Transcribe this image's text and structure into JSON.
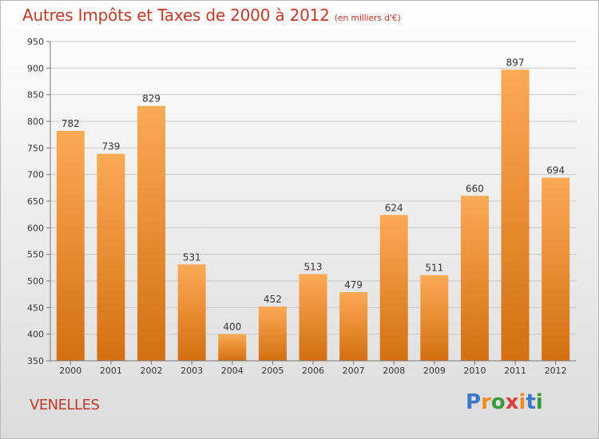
{
  "chart_data": {
    "type": "bar",
    "title": "Autres Impôts et Taxes de 2000 à 2012",
    "subtitle": "(en milliers d'€)",
    "categories": [
      "2000",
      "2001",
      "2002",
      "2003",
      "2004",
      "2005",
      "2006",
      "2007",
      "2008",
      "2009",
      "2010",
      "2011",
      "2012"
    ],
    "values": [
      782,
      739,
      829,
      531,
      400,
      452,
      513,
      479,
      624,
      511,
      660,
      897,
      694
    ],
    "ylim": [
      350,
      950
    ],
    "yticks": [
      350,
      400,
      450,
      500,
      550,
      600,
      650,
      700,
      750,
      800,
      850,
      900,
      950
    ],
    "ytick_labels": [
      "350",
      "400",
      "450",
      "500",
      "550",
      "600",
      "650",
      "700",
      "750",
      "800",
      "850",
      "900",
      "950"
    ],
    "grid": true,
    "bar_color_top": "#fbaa55",
    "bar_color_bottom": "#d46f12",
    "title_color": "#c03a2b"
  },
  "commune": "VENELLES",
  "brand": {
    "letters": [
      "P",
      "r",
      "o",
      "x",
      "i",
      "t",
      "i"
    ],
    "colors": [
      "#3a78c9",
      "#f08b1c",
      "#3a9a3a",
      "#e03a3a",
      "#f08b1c",
      "#3a78c9",
      "#3a9a3a"
    ]
  }
}
